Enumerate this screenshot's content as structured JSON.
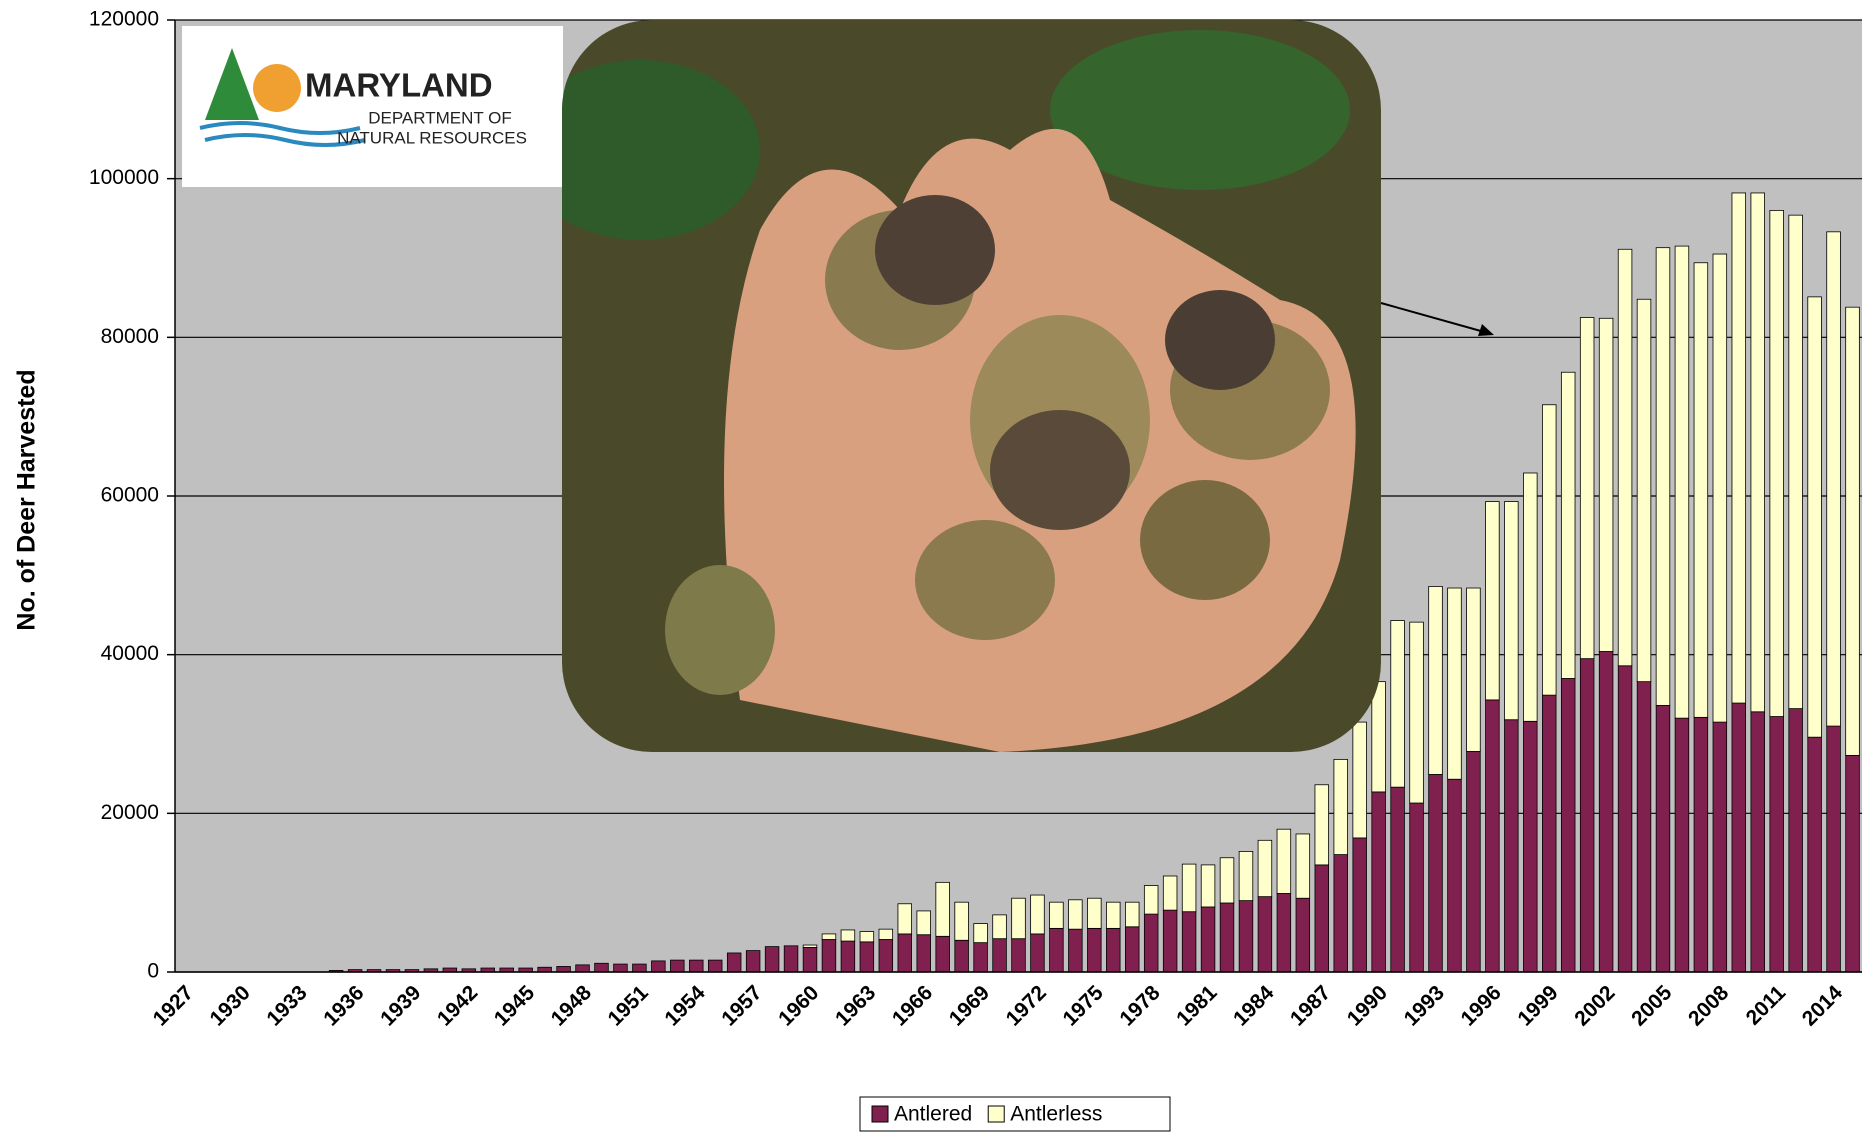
{
  "chart_data": {
    "type": "stacked-bar",
    "ylabel": "No. of Deer Harvested",
    "categories": [
      "1927",
      null,
      null,
      "1930",
      null,
      null,
      "1933",
      null,
      null,
      "1936",
      null,
      null,
      "1939",
      null,
      null,
      "1942",
      null,
      null,
      "1945",
      null,
      null,
      "1948",
      null,
      null,
      "1951",
      null,
      null,
      "1954",
      null,
      null,
      "1957",
      null,
      null,
      "1960",
      null,
      null,
      "1963",
      null,
      null,
      "1966",
      null,
      null,
      "1969",
      null,
      null,
      "1972",
      null,
      null,
      "1975",
      null,
      null,
      "1978",
      null,
      null,
      "1981",
      null,
      null,
      "1984",
      null,
      null,
      "1987",
      null,
      null,
      "1990",
      null,
      null,
      "1993",
      null,
      null,
      "1996",
      null,
      null,
      "1999",
      null,
      null,
      "2002",
      null,
      null,
      "2005",
      null,
      null,
      "2008",
      null,
      null,
      "2011",
      null,
      null,
      "2014",
      null
    ],
    "series": [
      {
        "name": "Antlered",
        "color": "#80204f",
        "values": [
          0,
          0,
          0,
          0,
          0,
          0,
          0,
          0,
          200,
          300,
          300,
          300,
          300,
          400,
          500,
          400,
          500,
          500,
          500,
          600,
          700,
          900,
          1100,
          1000,
          1000,
          1400,
          1500,
          1500,
          1500,
          2400,
          2700,
          3200,
          3300,
          3100,
          4100,
          3900,
          3800,
          4100,
          4800,
          4700,
          4500,
          4000,
          3700,
          4200,
          4200,
          4800,
          5500,
          5400,
          5500,
          5500,
          5700,
          7300,
          7800,
          7600,
          8200,
          8700,
          9000,
          9500,
          9900,
          9300,
          13500,
          14800,
          16900,
          22700,
          23300,
          21300,
          24900,
          24300,
          27800,
          34300,
          31800,
          31600,
          34900,
          37000,
          39500,
          40400,
          38600,
          36600,
          33600,
          32000,
          32100,
          31500,
          33900,
          32800,
          32200,
          33200,
          29600,
          31000,
          27300
        ]
      },
      {
        "name": "Antlerless",
        "color": "#ffffcc",
        "values": [
          0,
          0,
          0,
          0,
          0,
          0,
          0,
          0,
          0,
          0,
          0,
          0,
          0,
          0,
          0,
          0,
          0,
          0,
          0,
          0,
          0,
          0,
          0,
          0,
          0,
          0,
          0,
          0,
          0,
          0,
          0,
          0,
          0,
          300,
          700,
          1400,
          1300,
          1300,
          3800,
          3000,
          6800,
          4800,
          2400,
          3000,
          5100,
          4900,
          3300,
          3700,
          3800,
          3300,
          3100,
          3600,
          4300,
          6000,
          5300,
          5700,
          6200,
          7100,
          8100,
          8100,
          10100,
          12000,
          14600,
          13900,
          21000,
          22800,
          23700,
          24100,
          20600,
          25000,
          27500,
          31300,
          36600,
          38600,
          43000,
          42000,
          52500,
          48200,
          57700,
          59500,
          57300,
          59000,
          64300,
          65400,
          63800,
          62200,
          55500,
          62300,
          56500
        ]
      }
    ],
    "ylim": [
      0,
      120000
    ],
    "yticks": [
      0,
      20000,
      40000,
      60000,
      80000,
      100000,
      120000
    ],
    "grid": true,
    "legend": "bottom"
  },
  "logo_text": [
    "MARYLAND",
    "DEPARTMENT OF",
    "NATURAL RESOURCES"
  ]
}
